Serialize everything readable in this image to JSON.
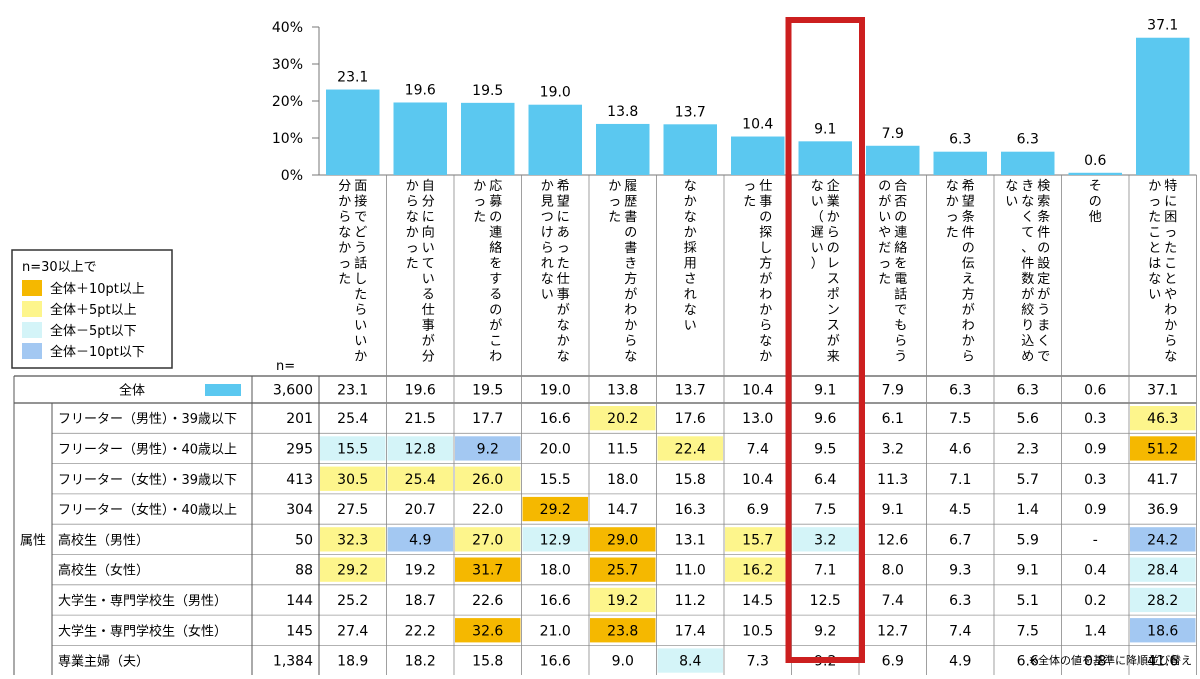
{
  "chart_data": {
    "type": "bar",
    "y_ticks": [
      "0%",
      "10%",
      "20%",
      "30%",
      "40%"
    ],
    "ylim": [
      0,
      40
    ],
    "categories": [
      "面接でどう話したらいいか分からなかった",
      "自分に向いている仕事が分からなかった",
      "応募の連絡をするのがこわかった",
      "希望にあった仕事がなかなか見つけられない",
      "履歴書の書き方がわからなかった",
      "なかなか採用されない",
      "仕事の探し方がわからなかった",
      "企業からのレスポンスが来ない（遅い）",
      "合否の連絡を電話でもらうのがいやだった",
      "希望条件の伝え方がわからなかった",
      "検索条件の設定がうまくできなくて、件数が絞り込めない",
      "その他",
      "特に困ったことやわからなかったことはない"
    ],
    "values": [
      23.1,
      19.6,
      19.5,
      19.0,
      13.8,
      13.7,
      10.4,
      9.1,
      7.9,
      6.3,
      6.3,
      0.6,
      37.1
    ],
    "value_labels": [
      "23.1",
      "19.6",
      "19.5",
      "19.0",
      "13.8",
      "13.7",
      "10.4",
      "9.1",
      "7.9",
      "6.3",
      "6.3",
      "0.6",
      "37.1"
    ],
    "bar_color": "#5bc8f0",
    "highlight_column_index": 7,
    "highlight_color": "#cc1f1f"
  },
  "legend": {
    "title": "n=30以上で",
    "items": [
      {
        "label": "全体＋10pt以上",
        "color": "#f5b800"
      },
      {
        "label": "全体＋5pt以上",
        "color": "#fdf58c"
      },
      {
        "label": "全体－5pt以下",
        "color": "#d4f4f8"
      },
      {
        "label": "全体－10pt以下",
        "color": "#a3c8f2"
      }
    ]
  },
  "table": {
    "n_header": "n=",
    "group_label": "属性",
    "total_row": {
      "label": "全体",
      "n": "3,600",
      "values": [
        "23.1",
        "19.6",
        "19.5",
        "19.0",
        "13.8",
        "13.7",
        "10.4",
        "9.1",
        "7.9",
        "6.3",
        "6.3",
        "0.6",
        "37.1"
      ]
    },
    "rows": [
      {
        "label": "フリーター（男性）・39歳以下",
        "n": "201",
        "values": [
          "25.4",
          "21.5",
          "17.7",
          "16.6",
          "20.2",
          "17.6",
          "13.0",
          "9.6",
          "6.1",
          "7.5",
          "5.6",
          "0.3",
          "46.3"
        ],
        "highlights": [
          "",
          "",
          "",
          "",
          "p5",
          "",
          "",
          "",
          "",
          "",
          "",
          "",
          "p5"
        ]
      },
      {
        "label": "フリーター（男性）・40歳以上",
        "n": "295",
        "values": [
          "15.5",
          "12.8",
          "9.2",
          "20.0",
          "11.5",
          "22.4",
          "7.4",
          "9.5",
          "3.2",
          "4.6",
          "2.3",
          "0.9",
          "51.2"
        ],
        "highlights": [
          "m5",
          "m5",
          "m10",
          "",
          "",
          "p5",
          "",
          "",
          "",
          "",
          "",
          "",
          "p10"
        ]
      },
      {
        "label": "フリーター（女性）・39歳以下",
        "n": "413",
        "values": [
          "30.5",
          "25.4",
          "26.0",
          "15.5",
          "18.0",
          "15.8",
          "10.4",
          "6.4",
          "11.3",
          "7.1",
          "5.7",
          "0.3",
          "41.7"
        ],
        "highlights": [
          "p5",
          "p5",
          "p5",
          "",
          "",
          "",
          "",
          "",
          "",
          "",
          "",
          "",
          ""
        ]
      },
      {
        "label": "フリーター（女性）・40歳以上",
        "n": "304",
        "values": [
          "27.5",
          "20.7",
          "22.0",
          "29.2",
          "14.7",
          "16.3",
          "6.9",
          "7.5",
          "9.1",
          "4.5",
          "1.4",
          "0.9",
          "36.9"
        ],
        "highlights": [
          "",
          "",
          "",
          "p10",
          "",
          "",
          "",
          "",
          "",
          "",
          "",
          "",
          ""
        ]
      },
      {
        "label": "高校生（男性）",
        "n": "50",
        "values": [
          "32.3",
          "4.9",
          "27.0",
          "12.9",
          "29.0",
          "13.1",
          "15.7",
          "3.2",
          "12.6",
          "6.7",
          "5.9",
          "-",
          "24.2"
        ],
        "highlights": [
          "p5",
          "m10",
          "p5",
          "m5",
          "p10",
          "",
          "p5",
          "m5",
          "",
          "",
          "",
          "",
          "m10"
        ]
      },
      {
        "label": "高校生（女性）",
        "n": "88",
        "values": [
          "29.2",
          "19.2",
          "31.7",
          "18.0",
          "25.7",
          "11.0",
          "16.2",
          "7.1",
          "8.0",
          "9.3",
          "9.1",
          "0.4",
          "28.4"
        ],
        "highlights": [
          "p5",
          "",
          "p10",
          "",
          "p10",
          "",
          "p5",
          "",
          "",
          "",
          "",
          "",
          "m5"
        ]
      },
      {
        "label": "大学生・専門学校生（男性）",
        "n": "144",
        "values": [
          "25.2",
          "18.7",
          "22.6",
          "16.6",
          "19.2",
          "11.2",
          "14.5",
          "12.5",
          "7.4",
          "6.3",
          "5.1",
          "0.2",
          "28.2"
        ],
        "highlights": [
          "",
          "",
          "",
          "",
          "p5",
          "",
          "",
          "",
          "",
          "",
          "",
          "",
          "m5"
        ]
      },
      {
        "label": "大学生・専門学校生（女性）",
        "n": "145",
        "values": [
          "27.4",
          "22.2",
          "32.6",
          "21.0",
          "23.8",
          "17.4",
          "10.5",
          "9.2",
          "12.7",
          "7.4",
          "7.5",
          "1.4",
          "18.6"
        ],
        "highlights": [
          "",
          "",
          "p10",
          "",
          "p10",
          "",
          "",
          "",
          "",
          "",
          "",
          "",
          "m10"
        ]
      },
      {
        "label": "専業主婦（夫）",
        "n": "1,384",
        "values": [
          "18.9",
          "18.2",
          "15.8",
          "16.6",
          "9.0",
          "8.4",
          "7.3",
          "9.2",
          "6.9",
          "4.9",
          "6.6",
          "0.8",
          "41.6"
        ],
        "highlights": [
          "",
          "",
          "",
          "",
          "",
          "m5",
          "",
          "",
          "",
          "",
          "",
          "",
          ""
        ]
      }
    ]
  },
  "highlight_colors": {
    "p10": "#f5b800",
    "p5": "#fdf58c",
    "m5": "#d4f4f8",
    "m10": "#a3c8f2"
  },
  "footnote": "※全体の値を基準に降順並び替え"
}
